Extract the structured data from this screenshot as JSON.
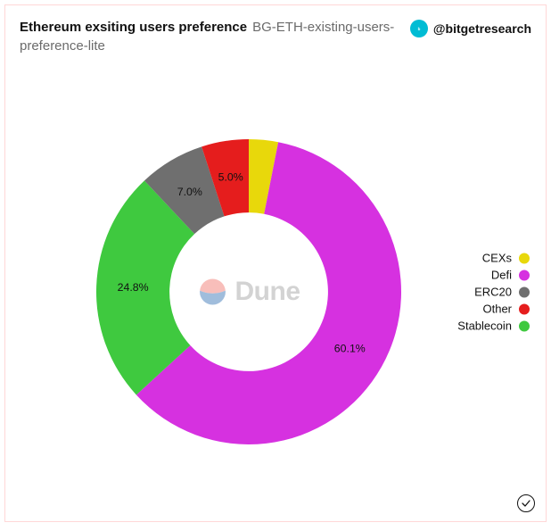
{
  "header": {
    "title": "Ethereum exsiting users preference",
    "subtitle": "BG-ETH-existing-users-preference-lite",
    "handle": "@bitgetresearch",
    "badge_color": "#00bcd4"
  },
  "watermark": {
    "text": "Dune",
    "icon_top_color": "#f07167",
    "icon_bottom_color": "#2f6fb3",
    "text_color": "#9e9e9e"
  },
  "chart": {
    "type": "donut",
    "background_color": "#ffffff",
    "border_color": "#ffd7d7",
    "inner_radius_ratio": 0.52,
    "label_fontsize": 13,
    "legend_position": "right",
    "start_angle_deg": 0,
    "slices": [
      {
        "name": "CEXs",
        "value": 3.1,
        "label": "",
        "color": "#e8d80b"
      },
      {
        "name": "Defi",
        "value": 60.1,
        "label": "60.1%",
        "color": "#d631e0"
      },
      {
        "name": "Stablecoin",
        "value": 24.8,
        "label": "24.8%",
        "color": "#3fc93f"
      },
      {
        "name": "ERC20",
        "value": 7.0,
        "label": "7.0%",
        "color": "#6f6f6f"
      },
      {
        "name": "Other",
        "value": 5.0,
        "label": "5.0%",
        "color": "#e51d1d"
      }
    ],
    "legend_order": [
      "CEXs",
      "Defi",
      "ERC20",
      "Other",
      "Stablecoin"
    ]
  },
  "footer": {
    "check_icon": "check"
  }
}
